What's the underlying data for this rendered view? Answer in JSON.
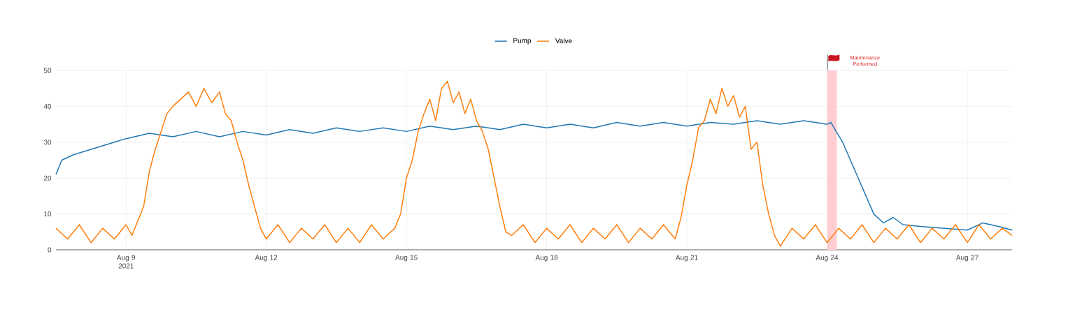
{
  "chart_data": {
    "type": "line",
    "xlim": [
      "2021-08-07T12:00",
      "2021-08-27T23:00"
    ],
    "xticks": [
      {
        "value": "2021-08-09",
        "label": "Aug 9 2021"
      },
      {
        "value": "2021-08-12",
        "label": "Aug 12"
      },
      {
        "value": "2021-08-15",
        "label": "Aug 15"
      },
      {
        "value": "2021-08-18",
        "label": "Aug 18"
      },
      {
        "value": "2021-08-21",
        "label": "Aug 21"
      },
      {
        "value": "2021-08-24",
        "label": "Aug 24"
      },
      {
        "value": "2021-08-27",
        "label": "Aug 27"
      }
    ],
    "ylim": [
      0,
      50
    ],
    "yticks": [
      0,
      10,
      20,
      30,
      40,
      50
    ],
    "grid": true,
    "legend": "top",
    "bands": [
      {
        "axis": "x",
        "from": "2021-08-24T00:00",
        "to": "2021-08-24T05:00",
        "label": "Maintenance Performed",
        "color": "#ffcdd2"
      }
    ],
    "series": [
      {
        "name": "Pump",
        "color": "#1f77b4",
        "x": [
          "2021-08-07T12:00",
          "2021-08-07T15:00",
          "2021-08-07T21:00",
          "2021-08-08T06:00",
          "2021-08-08T18:00",
          "2021-08-09T00:00",
          "2021-08-09T12:00",
          "2021-08-10T00:00",
          "2021-08-10T12:00",
          "2021-08-11T00:00",
          "2021-08-11T12:00",
          "2021-08-12T00:00",
          "2021-08-12T12:00",
          "2021-08-13T00:00",
          "2021-08-13T12:00",
          "2021-08-14T00:00",
          "2021-08-14T12:00",
          "2021-08-15T00:00",
          "2021-08-15T12:00",
          "2021-08-16T00:00",
          "2021-08-16T12:00",
          "2021-08-17T00:00",
          "2021-08-17T12:00",
          "2021-08-18T00:00",
          "2021-08-18T12:00",
          "2021-08-19T00:00",
          "2021-08-19T12:00",
          "2021-08-20T00:00",
          "2021-08-20T12:00",
          "2021-08-21T00:00",
          "2021-08-21T12:00",
          "2021-08-22T00:00",
          "2021-08-22T12:00",
          "2021-08-23T00:00",
          "2021-08-23T12:00",
          "2021-08-24T00:00",
          "2021-08-24T02:00",
          "2021-08-24T08:00",
          "2021-08-24T16:00",
          "2021-08-25T00:00",
          "2021-08-25T05:00",
          "2021-08-25T10:00",
          "2021-08-25T15:00",
          "2021-08-26T00:00",
          "2021-08-26T12:00",
          "2021-08-27T00:00",
          "2021-08-27T08:00",
          "2021-08-27T16:00",
          "2021-08-27T23:00"
        ],
        "values": [
          21,
          25,
          26.5,
          28,
          30,
          31,
          32.5,
          31.5,
          33,
          31.5,
          33,
          32,
          33.5,
          32.5,
          34,
          33,
          34,
          33,
          34.5,
          33.5,
          34.5,
          33.5,
          35,
          34,
          35,
          34,
          35.5,
          34.5,
          35.5,
          34.5,
          35.5,
          35,
          36,
          35,
          36,
          35,
          35.5,
          30,
          20,
          10,
          7.5,
          9,
          7,
          6.5,
          6,
          5.5,
          7.5,
          6.5,
          5.5
        ]
      },
      {
        "name": "Valve",
        "color": "#ff7f0e",
        "x": [
          "2021-08-07T12:00",
          "2021-08-07T18:00",
          "2021-08-08T00:00",
          "2021-08-08T06:00",
          "2021-08-08T12:00",
          "2021-08-08T18:00",
          "2021-08-09T00:00",
          "2021-08-09T03:00",
          "2021-08-09T06:00",
          "2021-08-09T09:00",
          "2021-08-09T12:00",
          "2021-08-09T15:00",
          "2021-08-09T18:00",
          "2021-08-09T21:00",
          "2021-08-10T00:00",
          "2021-08-10T04:00",
          "2021-08-10T08:00",
          "2021-08-10T12:00",
          "2021-08-10T16:00",
          "2021-08-10T20:00",
          "2021-08-11T00:00",
          "2021-08-11T03:00",
          "2021-08-11T06:00",
          "2021-08-11T09:00",
          "2021-08-11T12:00",
          "2021-08-11T15:00",
          "2021-08-11T18:00",
          "2021-08-11T21:00",
          "2021-08-12T00:00",
          "2021-08-12T06:00",
          "2021-08-12T12:00",
          "2021-08-12T18:00",
          "2021-08-13T00:00",
          "2021-08-13T06:00",
          "2021-08-13T12:00",
          "2021-08-13T18:00",
          "2021-08-14T00:00",
          "2021-08-14T06:00",
          "2021-08-14T12:00",
          "2021-08-14T18:00",
          "2021-08-14T21:00",
          "2021-08-15T00:00",
          "2021-08-15T03:00",
          "2021-08-15T06:00",
          "2021-08-15T09:00",
          "2021-08-15T12:00",
          "2021-08-15T15:00",
          "2021-08-15T18:00",
          "2021-08-15T21:00",
          "2021-08-16T00:00",
          "2021-08-16T03:00",
          "2021-08-16T06:00",
          "2021-08-16T09:00",
          "2021-08-16T12:00",
          "2021-08-16T15:00",
          "2021-08-16T18:00",
          "2021-08-16T21:00",
          "2021-08-17T00:00",
          "2021-08-17T03:00",
          "2021-08-17T06:00",
          "2021-08-17T12:00",
          "2021-08-17T18:00",
          "2021-08-18T00:00",
          "2021-08-18T06:00",
          "2021-08-18T12:00",
          "2021-08-18T18:00",
          "2021-08-19T00:00",
          "2021-08-19T06:00",
          "2021-08-19T12:00",
          "2021-08-19T18:00",
          "2021-08-20T00:00",
          "2021-08-20T06:00",
          "2021-08-20T12:00",
          "2021-08-20T18:00",
          "2021-08-20T21:00",
          "2021-08-21T00:00",
          "2021-08-21T03:00",
          "2021-08-21T06:00",
          "2021-08-21T09:00",
          "2021-08-21T12:00",
          "2021-08-21T15:00",
          "2021-08-21T18:00",
          "2021-08-21T21:00",
          "2021-08-22T00:00",
          "2021-08-22T03:00",
          "2021-08-22T06:00",
          "2021-08-22T09:00",
          "2021-08-22T12:00",
          "2021-08-22T15:00",
          "2021-08-22T18:00",
          "2021-08-22T21:00",
          "2021-08-23T00:00",
          "2021-08-23T06:00",
          "2021-08-23T12:00",
          "2021-08-23T18:00",
          "2021-08-24T00:00",
          "2021-08-24T06:00",
          "2021-08-24T12:00",
          "2021-08-24T18:00",
          "2021-08-25T00:00",
          "2021-08-25T06:00",
          "2021-08-25T12:00",
          "2021-08-25T18:00",
          "2021-08-26T00:00",
          "2021-08-26T06:00",
          "2021-08-26T12:00",
          "2021-08-26T18:00",
          "2021-08-27T00:00",
          "2021-08-27T06:00",
          "2021-08-27T12:00",
          "2021-08-27T18:00",
          "2021-08-27T23:00"
        ],
        "values": [
          6,
          3,
          7,
          2,
          6,
          3,
          7,
          4,
          8,
          12,
          22,
          28,
          33,
          38,
          40,
          42,
          44,
          40,
          45,
          41,
          44,
          38,
          36,
          30,
          25,
          18,
          12,
          6,
          3,
          7,
          2,
          6,
          3,
          7,
          2,
          6,
          2,
          7,
          3,
          6,
          10,
          20,
          25,
          33,
          38,
          42,
          36,
          45,
          47,
          41,
          44,
          38,
          42,
          36,
          33,
          28,
          20,
          12,
          5,
          4,
          7,
          2,
          6,
          3,
          7,
          2,
          6,
          3,
          7,
          2,
          6,
          3,
          7,
          3,
          9,
          18,
          25,
          34,
          36,
          42,
          38,
          45,
          40,
          43,
          37,
          40,
          28,
          30,
          18,
          10,
          4,
          1,
          6,
          3,
          7,
          2,
          6,
          3,
          7,
          2,
          6,
          3,
          7,
          2,
          6,
          3,
          7,
          2,
          7,
          3,
          6,
          4
        ]
      }
    ]
  }
}
